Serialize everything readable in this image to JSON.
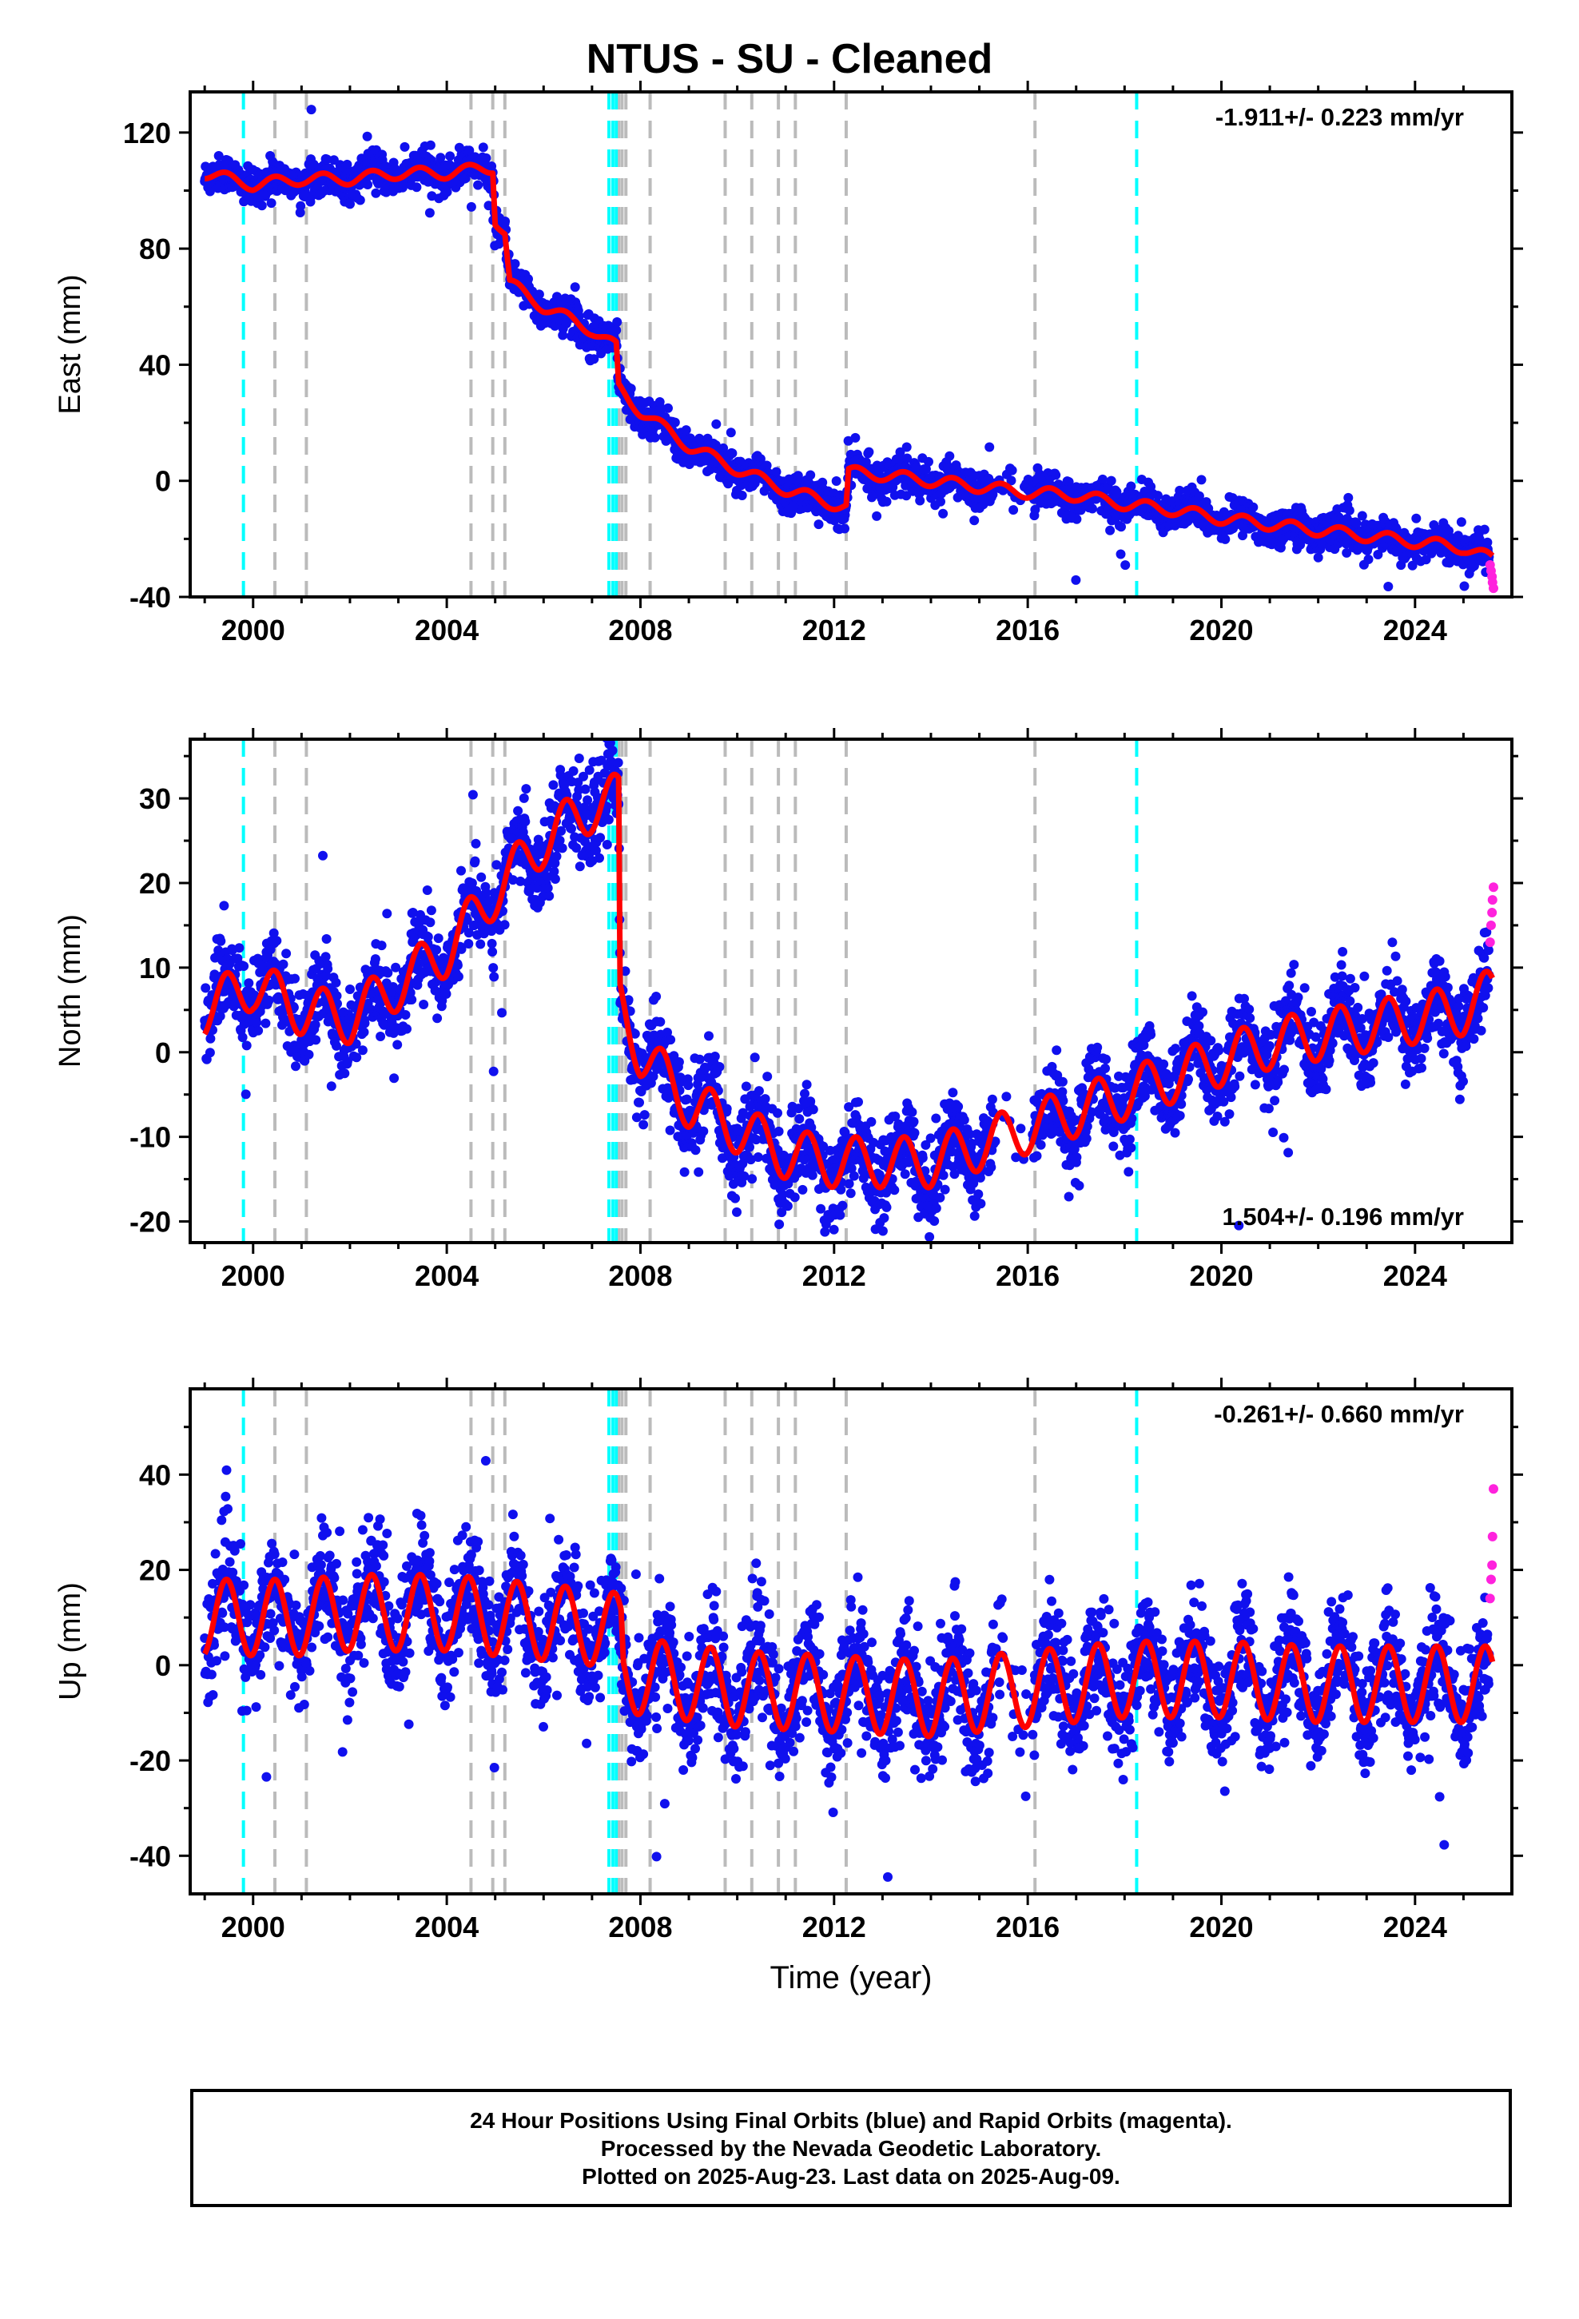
{
  "title": "NTUS  - SU - Cleaned",
  "footer": {
    "lines": [
      "24 Hour Positions Using Final Orbits (blue) and Rapid Orbits (magenta).",
      "Processed by the Nevada Geodetic Laboratory.",
      "Plotted on 2025-Aug-23. Last data on 2025-Aug-09."
    ]
  },
  "colors": {
    "final_orbits": "#1010ee",
    "rapid_orbits": "#ff22dd",
    "model": "#ff0000",
    "equipment_change": "#bbbbbb",
    "earthquake": "#00ffff"
  },
  "chart_data": [
    {
      "type": "scatter",
      "ylabel": "East (mm)",
      "xlabel": "",
      "xlim": [
        1998.7,
        2026.0
      ],
      "ylim": [
        -40,
        134
      ],
      "yticks": [
        -40,
        0,
        40,
        80,
        120
      ],
      "xticks": [
        2000,
        2004,
        2008,
        2012,
        2016,
        2020,
        2024
      ],
      "rate_label": "-1.911+/- 0.223 mm/yr",
      "rate_position": "top-right",
      "equipment_change_epochs": [
        2000.45,
        2001.1,
        2004.5,
        2004.95,
        2005.2,
        2007.55,
        2007.62,
        2007.7,
        2008.2,
        2009.75,
        2010.3,
        2010.85,
        2011.2,
        2012.25,
        2016.15
      ],
      "earthquake_epochs": [
        1999.8,
        2007.35,
        2007.43,
        2007.5,
        2018.25
      ],
      "model_trend": [
        [
          1999.0,
          106
        ],
        [
          2000.0,
          102
        ],
        [
          2001.0,
          104
        ],
        [
          2002.0,
          104
        ],
        [
          2003.0,
          106
        ],
        [
          2004.0,
          106
        ],
        [
          2004.95,
          108
        ],
        [
          2005.0,
          90
        ],
        [
          2005.2,
          85
        ],
        [
          2005.3,
          68
        ],
        [
          2006.0,
          60
        ],
        [
          2007.0,
          52
        ],
        [
          2007.5,
          46
        ],
        [
          2007.55,
          32
        ],
        [
          2008.0,
          24
        ],
        [
          2009.0,
          12
        ],
        [
          2010.0,
          4
        ],
        [
          2011.0,
          -3
        ],
        [
          2012.0,
          -8
        ],
        [
          2012.25,
          -9
        ],
        [
          2012.3,
          3
        ],
        [
          2013.0,
          2
        ],
        [
          2014.0,
          0
        ],
        [
          2015.0,
          -2
        ],
        [
          2016.0,
          -4
        ],
        [
          2017.0,
          -5
        ],
        [
          2018.0,
          -8
        ],
        [
          2019.0,
          -10
        ],
        [
          2020.0,
          -13
        ],
        [
          2021.0,
          -15
        ],
        [
          2022.0,
          -17
        ],
        [
          2023.0,
          -19
        ],
        [
          2024.0,
          -21
        ],
        [
          2025.0,
          -23
        ],
        [
          2025.6,
          -27
        ]
      ],
      "model_seasonal_amplitude": 2,
      "scatter_sigma": 3,
      "final_orbits_end": 2025.53,
      "rapid_orbits": [
        [
          2025.55,
          -29
        ],
        [
          2025.57,
          -31
        ],
        [
          2025.59,
          -33
        ],
        [
          2025.6,
          -35
        ],
        [
          2025.62,
          -37
        ]
      ]
    },
    {
      "type": "scatter",
      "ylabel": "North (mm)",
      "xlabel": "",
      "xlim": [
        1998.7,
        2026.0
      ],
      "ylim": [
        -22.5,
        37
      ],
      "yticks": [
        -20,
        -10,
        0,
        10,
        20,
        30
      ],
      "xticks": [
        2000,
        2004,
        2008,
        2012,
        2016,
        2020,
        2024
      ],
      "rate_label": "1.504+/- 0.196 mm/yr",
      "rate_position": "bottom-right",
      "equipment_change_epochs": [
        2000.45,
        2001.1,
        2004.5,
        2004.95,
        2005.2,
        2007.55,
        2007.62,
        2007.7,
        2008.2,
        2009.75,
        2010.3,
        2010.85,
        2011.2,
        2012.25,
        2016.15
      ],
      "earthquake_epochs": [
        1999.8,
        2007.35,
        2007.43,
        2007.5,
        2018.25
      ],
      "model_trend": [
        [
          1999.0,
          5
        ],
        [
          2000.0,
          8
        ],
        [
          2001.0,
          5
        ],
        [
          2002.0,
          4
        ],
        [
          2003.0,
          8
        ],
        [
          2004.0,
          12
        ],
        [
          2005.0,
          19
        ],
        [
          2006.0,
          25
        ],
        [
          2007.0,
          29
        ],
        [
          2007.55,
          30
        ],
        [
          2007.58,
          6
        ],
        [
          2008.0,
          0
        ],
        [
          2009.0,
          -6
        ],
        [
          2010.0,
          -9
        ],
        [
          2011.0,
          -12
        ],
        [
          2012.0,
          -13
        ],
        [
          2013.0,
          -13
        ],
        [
          2014.0,
          -13
        ],
        [
          2015.0,
          -11
        ],
        [
          2016.0,
          -9
        ],
        [
          2017.0,
          -7
        ],
        [
          2018.0,
          -5
        ],
        [
          2019.0,
          -3
        ],
        [
          2020.0,
          -1
        ],
        [
          2021.0,
          1
        ],
        [
          2022.0,
          2
        ],
        [
          2023.0,
          3
        ],
        [
          2024.0,
          4
        ],
        [
          2025.0,
          5
        ],
        [
          2025.6,
          7
        ]
      ],
      "model_seasonal_amplitude": 3,
      "scatter_sigma": 2.5,
      "final_orbits_end": 2025.53,
      "rapid_orbits": [
        [
          2025.55,
          13
        ],
        [
          2025.57,
          15
        ],
        [
          2025.59,
          16.5
        ],
        [
          2025.6,
          18
        ],
        [
          2025.62,
          19.5
        ]
      ]
    },
    {
      "type": "scatter",
      "ylabel": "Up (mm)",
      "xlabel": "Time (year)",
      "xlim": [
        1998.7,
        2026.0
      ],
      "ylim": [
        -48,
        58
      ],
      "yticks": [
        -40,
        -20,
        0,
        20,
        40
      ],
      "xticks": [
        2000,
        2004,
        2008,
        2012,
        2016,
        2020,
        2024
      ],
      "rate_label": "-0.261+/- 0.660 mm/yr",
      "rate_position": "top-right",
      "equipment_change_epochs": [
        2000.45,
        2001.1,
        2004.5,
        2004.95,
        2005.2,
        2007.55,
        2007.62,
        2007.7,
        2008.2,
        2009.75,
        2010.3,
        2010.85,
        2011.2,
        2012.25,
        2016.15
      ],
      "earthquake_epochs": [
        1999.8,
        2007.35,
        2007.43,
        2007.5,
        2018.25
      ],
      "model_trend": [
        [
          1999.0,
          10
        ],
        [
          2000.0,
          10
        ],
        [
          2001.0,
          10
        ],
        [
          2002.0,
          11
        ],
        [
          2003.0,
          11
        ],
        [
          2004.0,
          11
        ],
        [
          2005.0,
          10
        ],
        [
          2006.0,
          9
        ],
        [
          2007.0,
          8
        ],
        [
          2007.6,
          7
        ],
        [
          2007.65,
          -2
        ],
        [
          2008.5,
          -3
        ],
        [
          2010.0,
          -5
        ],
        [
          2012.0,
          -6
        ],
        [
          2014.0,
          -7
        ],
        [
          2016.0,
          -5
        ],
        [
          2018.0,
          -3
        ],
        [
          2020.0,
          -3
        ],
        [
          2022.0,
          -4
        ],
        [
          2024.0,
          -4
        ],
        [
          2025.6,
          -4
        ]
      ],
      "model_seasonal_amplitude": 8,
      "scatter_sigma": 6,
      "final_orbits_end": 2025.53,
      "rapid_orbits": [
        [
          2025.55,
          14
        ],
        [
          2025.57,
          18
        ],
        [
          2025.59,
          21
        ],
        [
          2025.6,
          27
        ],
        [
          2025.62,
          37
        ]
      ]
    }
  ]
}
